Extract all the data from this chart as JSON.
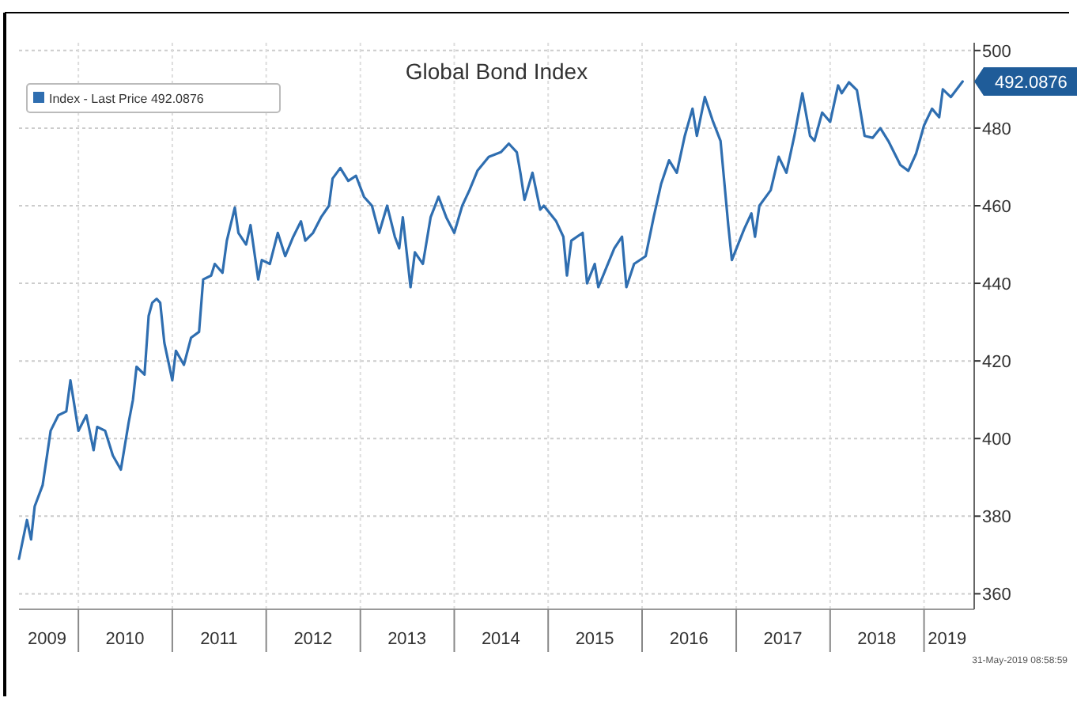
{
  "chart_data": {
    "type": "line",
    "title": "Global Bond Index",
    "x": [
      "2009-05-15",
      "2009-06-15",
      "2009-07-01",
      "2009-07-15",
      "2009-08-15",
      "2009-09-01",
      "2009-09-15",
      "2009-10-15",
      "2009-11-15",
      "2009-12-01",
      "2010-01-01",
      "2010-02-01",
      "2010-03-01",
      "2010-03-15",
      "2010-04-15",
      "2010-05-15",
      "2010-06-15",
      "2010-07-15",
      "2010-08-01",
      "2010-08-15",
      "2010-09-15",
      "2010-10-01",
      "2010-10-15",
      "2010-11-01",
      "2010-11-15",
      "2010-12-01",
      "2011-01-01",
      "2011-01-15",
      "2011-02-15",
      "2011-03-15",
      "2011-04-15",
      "2011-05-01",
      "2011-06-01",
      "2011-06-15",
      "2011-07-15",
      "2011-08-01",
      "2011-09-01",
      "2011-09-15",
      "2011-10-15",
      "2011-11-01",
      "2011-12-01",
      "2011-12-15",
      "2012-01-15",
      "2012-02-15",
      "2012-03-15",
      "2012-04-15",
      "2012-05-15",
      "2012-06-01",
      "2012-07-01",
      "2012-08-01",
      "2012-09-01",
      "2012-09-15",
      "2012-10-15",
      "2012-11-15",
      "2012-12-15",
      "2013-01-15",
      "2013-02-15",
      "2013-03-15",
      "2013-04-15",
      "2013-05-15",
      "2013-06-01",
      "2013-06-15",
      "2013-07-15",
      "2013-08-01",
      "2013-09-01",
      "2013-10-01",
      "2013-11-01",
      "2013-12-01",
      "2014-01-01",
      "2014-02-01",
      "2014-03-01",
      "2014-04-01",
      "2014-05-15",
      "2014-07-01",
      "2014-08-01",
      "2014-09-01",
      "2014-09-15",
      "2014-10-01",
      "2014-11-01",
      "2014-12-01",
      "2014-12-15",
      "2015-02-01",
      "2015-03-01",
      "2015-03-15",
      "2015-04-01",
      "2015-05-15",
      "2015-06-01",
      "2015-07-01",
      "2015-07-15",
      "2015-08-15",
      "2015-09-15",
      "2015-10-15",
      "2015-11-01",
      "2015-12-01",
      "2016-01-15",
      "2016-02-15",
      "2016-03-15",
      "2016-04-15",
      "2016-05-15",
      "2016-06-15",
      "2016-07-15",
      "2016-08-01",
      "2016-09-01",
      "2016-10-01",
      "2016-11-01",
      "2016-12-01",
      "2016-12-15",
      "2017-02-01",
      "2017-03-01",
      "2017-03-15",
      "2017-04-01",
      "2017-05-15",
      "2017-06-15",
      "2017-07-15",
      "2017-08-15",
      "2017-09-15",
      "2017-10-15",
      "2017-11-01",
      "2017-12-01",
      "2018-01-01",
      "2018-02-01",
      "2018-02-15",
      "2018-03-15",
      "2018-04-15",
      "2018-05-15",
      "2018-06-15",
      "2018-07-15",
      "2018-08-15",
      "2018-10-01",
      "2018-11-01",
      "2018-12-01",
      "2019-01-01",
      "2019-02-01",
      "2019-03-01",
      "2019-03-15",
      "2019-04-15",
      "2019-05-31"
    ],
    "series": [
      {
        "name": "Index - Last Price 492.0876",
        "color": "#2f6eb0",
        "values": [
          369,
          379,
          374,
          382.5,
          388,
          395.6,
          402,
          406,
          407,
          415,
          402,
          406,
          397,
          403,
          402,
          395.6,
          392,
          404,
          410,
          418.5,
          416.5,
          431.6,
          435,
          436,
          435,
          424.7,
          415,
          422.6,
          419,
          426,
          427.5,
          441,
          442,
          445,
          442.7,
          451,
          459.5,
          453,
          450,
          455,
          441,
          446,
          445,
          453,
          447,
          452,
          456,
          451,
          453,
          457,
          460,
          467,
          469.7,
          466.4,
          467.7,
          462.3,
          460,
          453,
          460,
          452,
          449,
          457,
          439,
          448,
          445,
          457,
          462.3,
          457,
          453,
          460,
          464,
          469,
          472.6,
          473.8,
          476,
          473.8,
          468.5,
          461.5,
          468.5,
          459,
          460,
          456,
          452,
          442,
          451,
          453,
          440,
          445,
          439,
          444,
          449,
          452,
          439,
          445,
          447,
          457,
          465.6,
          471.7,
          468.5,
          478,
          485,
          478,
          488,
          482,
          476.7,
          455,
          446,
          454,
          458,
          452,
          460,
          464,
          472.6,
          468.5,
          478,
          489,
          478,
          476.7,
          484,
          481.6,
          491,
          489,
          491.8,
          489.8,
          478,
          477.5,
          480,
          476.7,
          470.5,
          469,
          473.4,
          480.7,
          485,
          482.8,
          490,
          488,
          492
        ]
      }
    ],
    "xlim": [
      "2009-05-15",
      "2019-07-15"
    ],
    "xticks": [
      {
        "value": "2009-09-01",
        "label": "2009"
      },
      {
        "value": "2010-01-01",
        "label": null
      },
      {
        "value": "2010-07-01",
        "label": "2010"
      },
      {
        "value": "2011-01-01",
        "label": null
      },
      {
        "value": "2011-07-01",
        "label": "2011"
      },
      {
        "value": "2012-01-01",
        "label": null
      },
      {
        "value": "2012-07-01",
        "label": "2012"
      },
      {
        "value": "2013-01-01",
        "label": null
      },
      {
        "value": "2013-07-01",
        "label": "2013"
      },
      {
        "value": "2014-01-01",
        "label": null
      },
      {
        "value": "2014-07-01",
        "label": "2014"
      },
      {
        "value": "2015-01-01",
        "label": null
      },
      {
        "value": "2015-07-01",
        "label": "2015"
      },
      {
        "value": "2016-01-01",
        "label": null
      },
      {
        "value": "2016-07-01",
        "label": "2016"
      },
      {
        "value": "2017-01-01",
        "label": null
      },
      {
        "value": "2017-07-01",
        "label": "2017"
      },
      {
        "value": "2018-01-01",
        "label": null
      },
      {
        "value": "2018-07-01",
        "label": "2018"
      },
      {
        "value": "2019-01-01",
        "label": null
      },
      {
        "value": "2019-04-01",
        "label": "2019"
      }
    ],
    "ylim": [
      356,
      502
    ],
    "yticks": [
      360,
      380,
      400,
      420,
      440,
      460,
      480,
      500
    ],
    "grid": true,
    "legend": "top left",
    "line_style": "solid",
    "marker": "none",
    "annotations": [
      "492.0876",
      "31-May-2019 08:58:59"
    ]
  }
}
